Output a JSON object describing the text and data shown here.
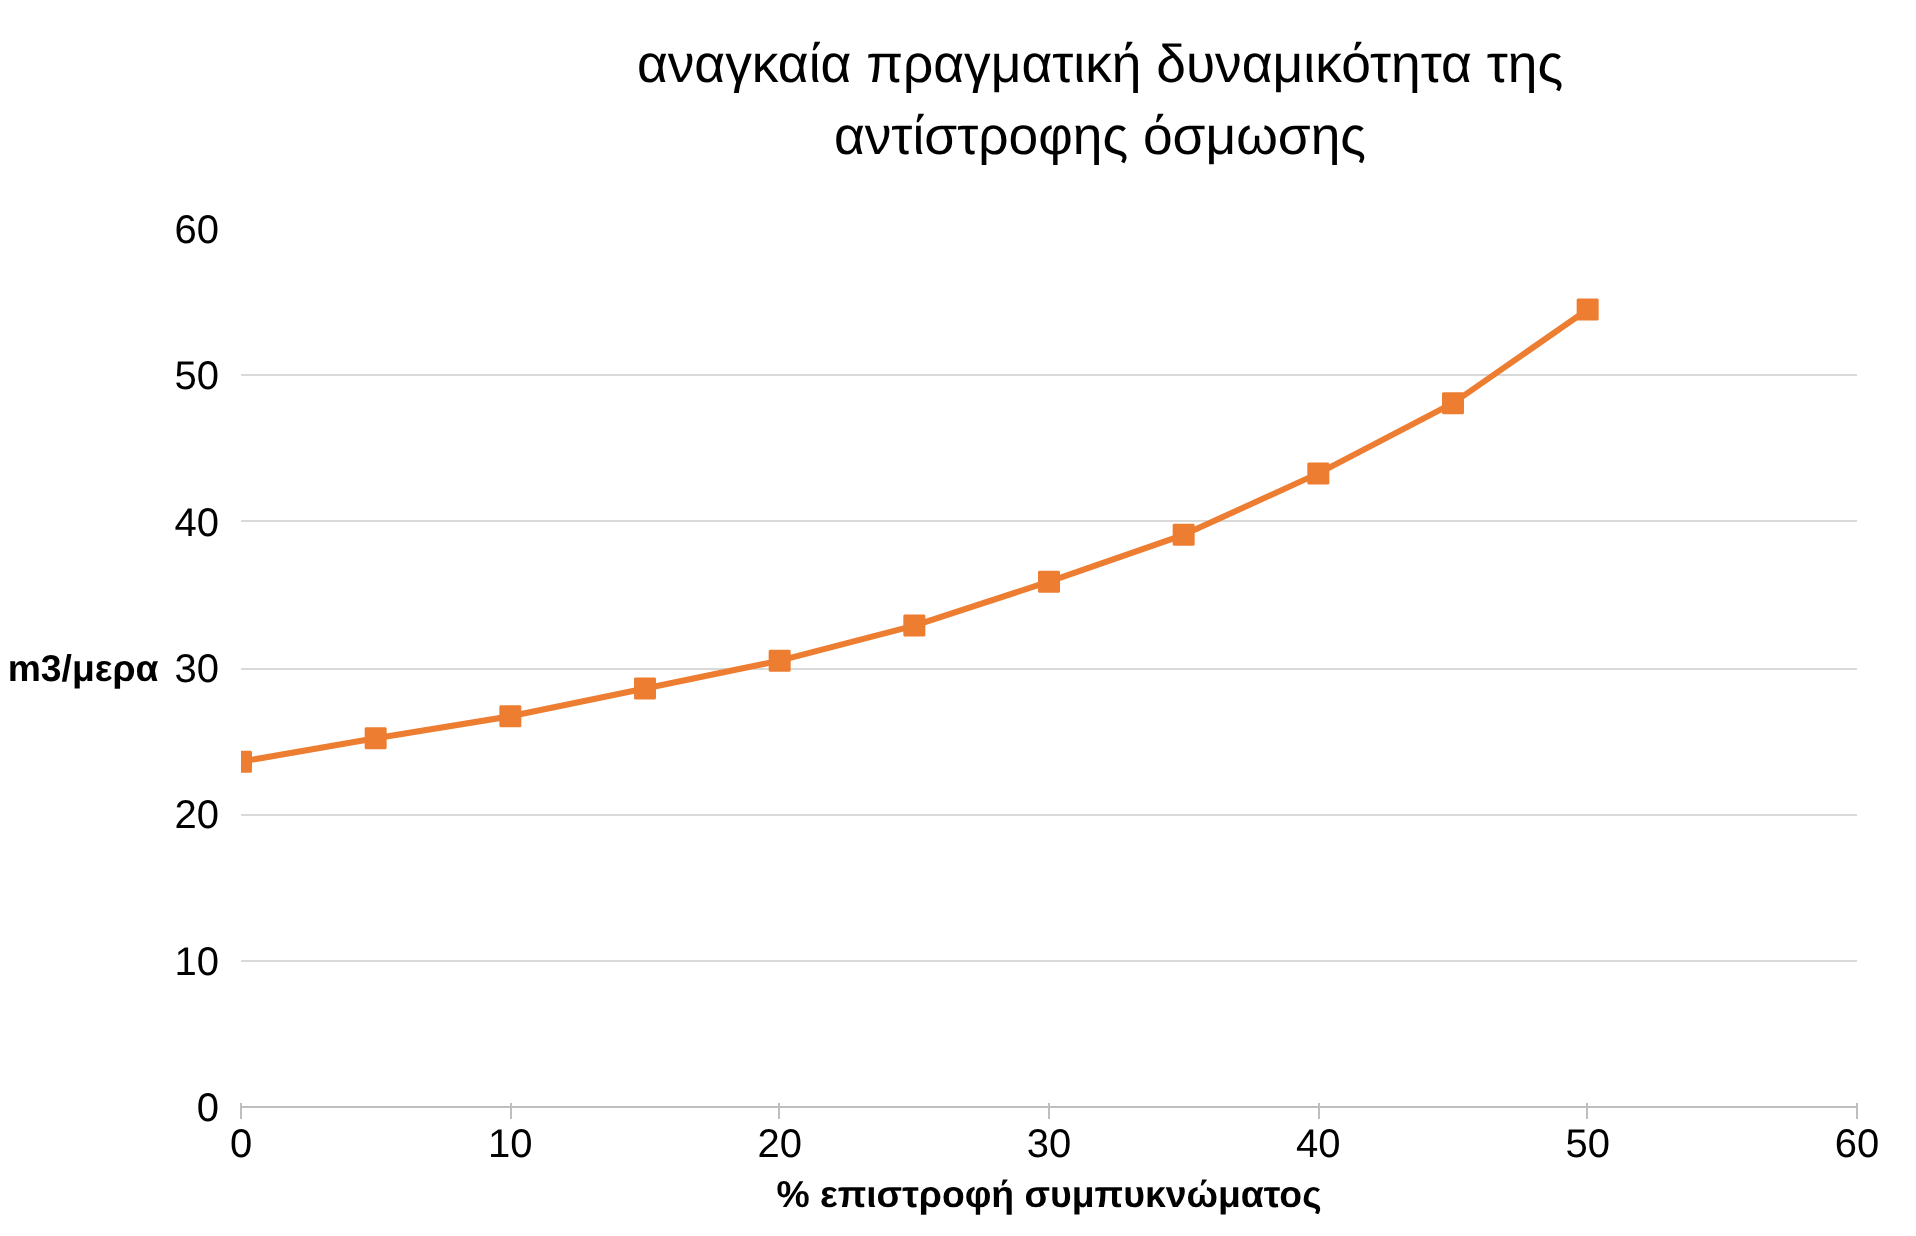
{
  "chart_data": {
    "type": "line",
    "title": "αναγκαία πραγματική δυναμικότητα της αντίστροφης όσμωσης",
    "xlabel": "% επιστροφή συμπυκνώματος",
    "ylabel": "m3/μερα",
    "x": [
      0,
      5,
      10,
      15,
      20,
      25,
      30,
      35,
      40,
      45,
      50
    ],
    "series": [
      {
        "color": "#ed7d31",
        "values": [
          23.6,
          25.2,
          26.7,
          28.6,
          30.5,
          32.9,
          35.9,
          39.1,
          43.3,
          48.1,
          54.5
        ]
      }
    ],
    "xlim": [
      0,
      60
    ],
    "xticks": [
      0,
      10,
      20,
      30,
      40,
      50,
      60
    ],
    "ylim": [
      0,
      60
    ],
    "yticks": [
      0,
      10,
      20,
      30,
      40,
      50,
      60
    ],
    "grid": "y",
    "marker": "square",
    "line_style": "solid"
  }
}
